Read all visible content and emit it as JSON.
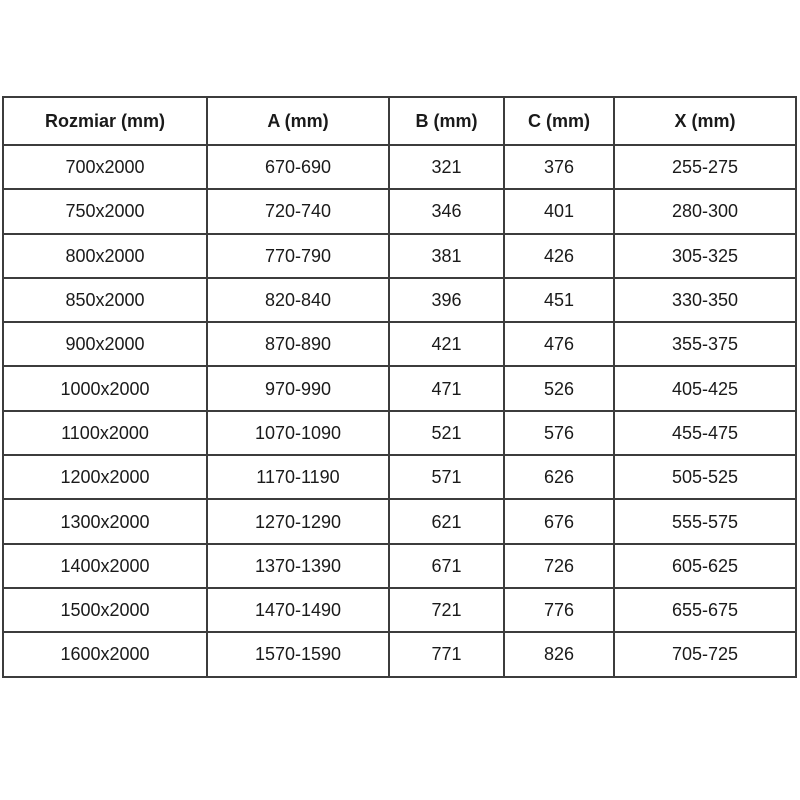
{
  "table": {
    "columns": [
      "Rozmiar (mm)",
      "A (mm)",
      "B (mm)",
      "C (mm)",
      "X (mm)"
    ],
    "rows": [
      [
        "700x2000",
        "670-690",
        "321",
        "376",
        "255-275"
      ],
      [
        "750x2000",
        "720-740",
        "346",
        "401",
        "280-300"
      ],
      [
        "800x2000",
        "770-790",
        "381",
        "426",
        "305-325"
      ],
      [
        "850x2000",
        "820-840",
        "396",
        "451",
        "330-350"
      ],
      [
        "900x2000",
        "870-890",
        "421",
        "476",
        "355-375"
      ],
      [
        "1000x2000",
        "970-990",
        "471",
        "526",
        "405-425"
      ],
      [
        "1100x2000",
        "1070-1090",
        "521",
        "576",
        "455-475"
      ],
      [
        "1200x2000",
        "1170-1190",
        "571",
        "626",
        "505-525"
      ],
      [
        "1300x2000",
        "1270-1290",
        "621",
        "676",
        "555-575"
      ],
      [
        "1400x2000",
        "1370-1390",
        "671",
        "726",
        "605-625"
      ],
      [
        "1500x2000",
        "1470-1490",
        "721",
        "776",
        "655-675"
      ],
      [
        "1600x2000",
        "1570-1590",
        "771",
        "826",
        "705-725"
      ]
    ],
    "colors": {
      "border": "#3c3c3c",
      "text": "#1a1a1a",
      "background": "#ffffff"
    }
  }
}
